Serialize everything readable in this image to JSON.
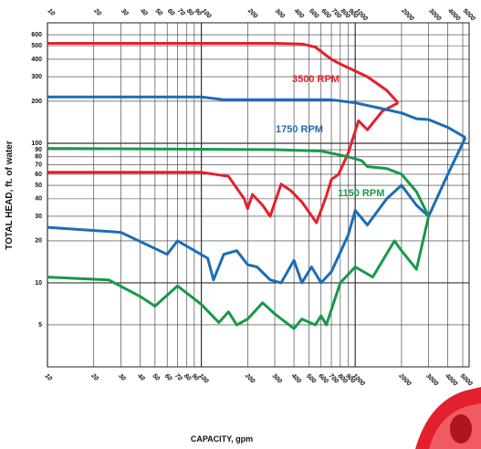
{
  "chart_data": {
    "type": "line",
    "x_label": "CAPACITY, gpm",
    "y_label": "TOTAL HEAD, ft. of water",
    "log_x": true,
    "log_y": true,
    "grid": true,
    "xlim": [
      10,
      5500
    ],
    "ylim": [
      2.5,
      730
    ],
    "xticks": [
      10,
      20,
      30,
      40,
      50,
      60,
      70,
      80,
      90,
      100,
      200,
      300,
      400,
      500,
      600,
      700,
      800,
      900,
      1000,
      2000,
      3000,
      4000,
      5000
    ],
    "yticks": [
      5,
      10,
      20,
      30,
      40,
      50,
      60,
      70,
      80,
      90,
      100,
      200,
      300,
      400,
      500,
      600
    ],
    "curves": [
      {
        "name": "3500 RPM",
        "color": "#e3202e",
        "upper": {
          "x": [
            10,
            300,
            450,
            550,
            700,
            800,
            1200,
            1600,
            1900
          ],
          "y": [
            520,
            520,
            515,
            490,
            400,
            370,
            300,
            240,
            195
          ]
        },
        "lower": {
          "x": [
            10,
            100,
            150,
            190,
            200,
            215,
            250,
            280,
            330,
            380,
            450,
            560,
            650,
            700,
            780,
            900,
            1050,
            1200,
            1500,
            1900
          ],
          "y": [
            62,
            62,
            58,
            40,
            34,
            43,
            36,
            30,
            51,
            46,
            38,
            27,
            42,
            55,
            60,
            85,
            145,
            125,
            170,
            195
          ]
        }
      },
      {
        "name": "1750 RPM",
        "color": "#1b6db5",
        "upper": {
          "x": [
            10,
            100,
            140,
            700,
            1000,
            1400,
            2000,
            2500,
            3000,
            4000,
            5200
          ],
          "y": [
            215,
            215,
            205,
            205,
            195,
            180,
            165,
            150,
            148,
            130,
            110
          ]
        },
        "lower": {
          "x": [
            10,
            30,
            60,
            70,
            110,
            120,
            140,
            170,
            200,
            230,
            280,
            330,
            400,
            450,
            520,
            600,
            700,
            900,
            1000,
            1200,
            1600,
            2000,
            2500,
            3000,
            4000,
            5200
          ],
          "y": [
            25,
            23,
            16,
            20,
            15,
            10.5,
            16,
            17,
            13.5,
            13,
            10.5,
            10,
            14.5,
            10,
            13,
            10,
            12,
            22,
            33,
            26,
            40,
            50,
            36,
            30,
            60,
            110
          ]
        }
      },
      {
        "name": "1150 RPM",
        "color": "#169a48",
        "upper": {
          "x": [
            10,
            300,
            600,
            900,
            1100,
            1200,
            1600,
            2000,
            2500,
            3000
          ],
          "y": [
            92,
            90,
            88,
            80,
            75,
            68,
            66,
            60,
            45,
            30
          ]
        },
        "lower": {
          "x": [
            10,
            25,
            40,
            50,
            70,
            100,
            130,
            150,
            170,
            200,
            250,
            300,
            400,
            450,
            550,
            600,
            650,
            800,
            1000,
            1300,
            1800,
            2000,
            2500,
            3000
          ],
          "y": [
            11,
            10.5,
            8,
            6.8,
            9.5,
            7,
            5.2,
            6.2,
            5,
            5.5,
            7.2,
            6,
            4.7,
            5.5,
            5,
            5.8,
            5,
            10,
            13,
            11,
            20,
            17,
            12.5,
            30
          ]
        }
      }
    ]
  }
}
